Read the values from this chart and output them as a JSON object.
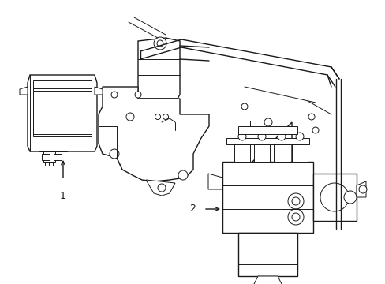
{
  "background_color": "#ffffff",
  "line_color": "#1a1a1a",
  "fig_width": 4.89,
  "fig_height": 3.6,
  "dpi": 100,
  "label1_text": "1",
  "label2_text": "2"
}
